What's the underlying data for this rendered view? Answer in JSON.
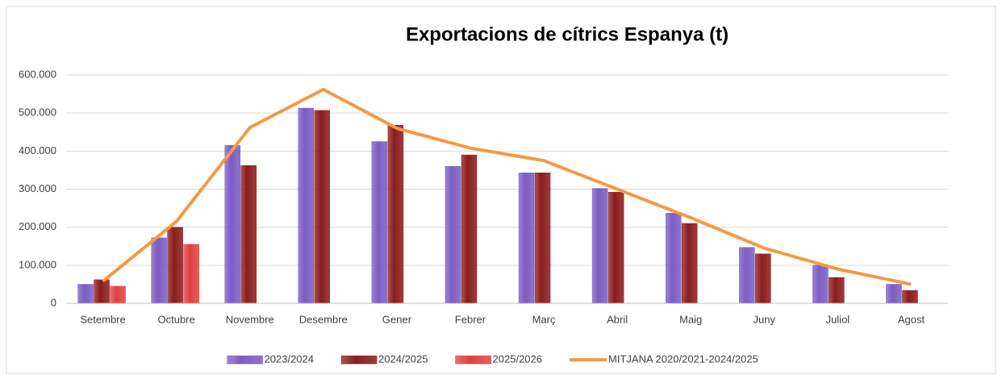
{
  "chart_data": {
    "type": "bar",
    "title": "Exportacions de cítrics Espanya (t)",
    "categories": [
      "Setembre",
      "Octubre",
      "Novembre",
      "Desembre",
      "Gener",
      "Febrer",
      "Març",
      "Abril",
      "Maig",
      "Juny",
      "Juliol",
      "Agost"
    ],
    "series": [
      {
        "name": "2023/2024",
        "color": "#7b5cc4",
        "values": [
          50000,
          172000,
          415000,
          513000,
          425000,
          360000,
          343000,
          302000,
          237000,
          147000,
          100000,
          50000
        ]
      },
      {
        "name": "2024/2025",
        "color": "#8b1c1c",
        "values": [
          62000,
          200000,
          362000,
          507000,
          468000,
          390000,
          343000,
          292000,
          210000,
          130000,
          68000,
          34000
        ]
      },
      {
        "name": "2025/2026",
        "color": "#e0403f",
        "values": [
          45000,
          155000,
          null,
          null,
          null,
          null,
          null,
          null,
          null,
          null,
          null,
          null
        ]
      },
      {
        "name": "MITJANA 2020/2021-2024/2025",
        "color": "#f29a44",
        "type": "line",
        "values": [
          58000,
          215000,
          462000,
          562000,
          460000,
          408000,
          375000,
          300000,
          225000,
          145000,
          90000,
          50000
        ]
      }
    ],
    "ylim": [
      0,
      600000
    ],
    "yticks": [
      0,
      {
        "value": 100000,
        "label": "100.000"
      },
      {
        "value": 200000,
        "label": "200.000"
      },
      {
        "value": 300000,
        "label": "300.000"
      },
      {
        "value": 400000,
        "label": "400.000"
      },
      {
        "value": 500000,
        "label": "500.000"
      },
      {
        "value": 600000,
        "label": "600.000"
      }
    ],
    "grid": true,
    "legend": "bottom"
  }
}
